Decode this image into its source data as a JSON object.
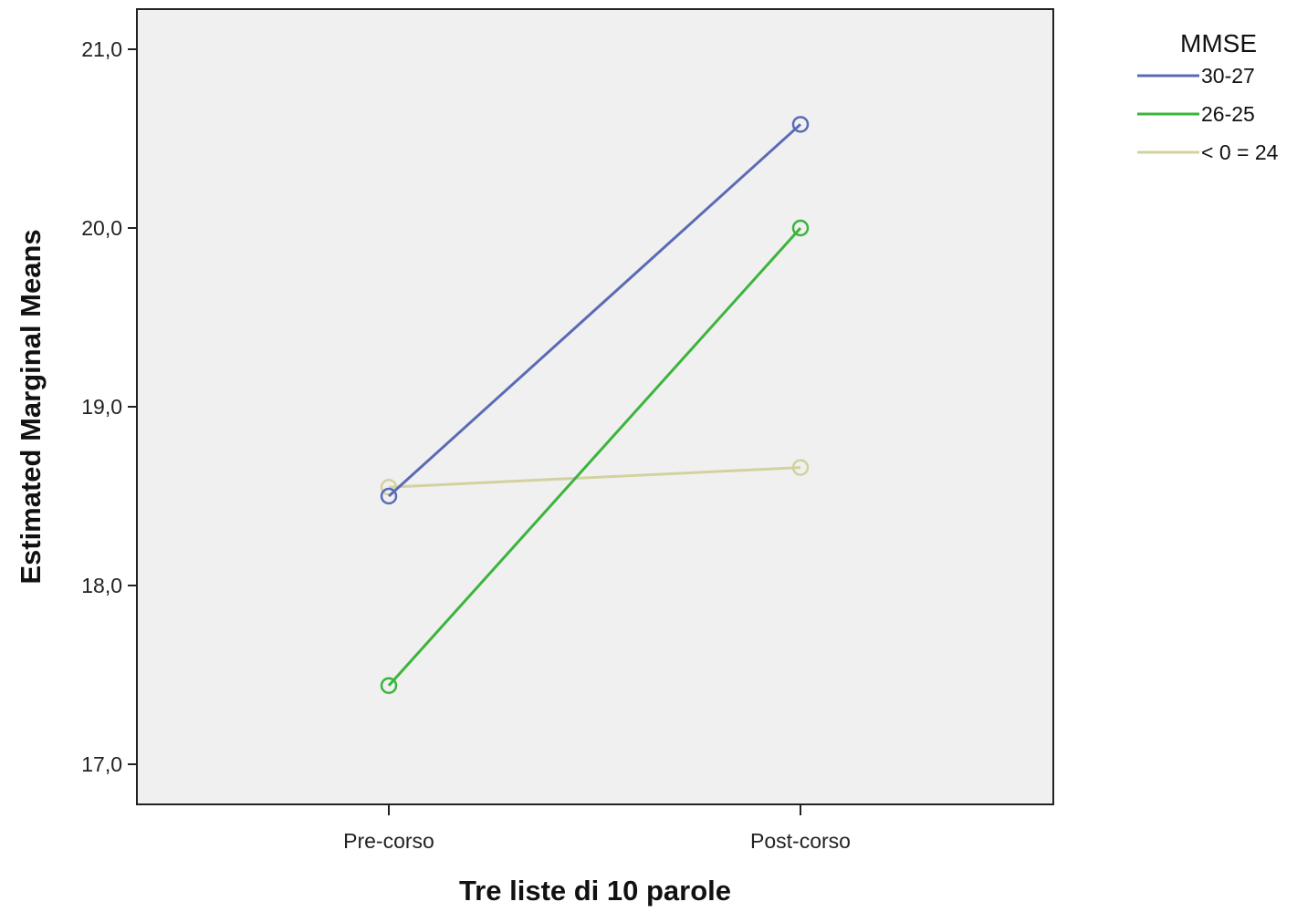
{
  "chart_data": {
    "type": "line",
    "title": "",
    "xlabel": "Tre liste di 10 parole",
    "ylabel": "Estimated Marginal Means",
    "categories": [
      "Pre-corso",
      "Post-corso"
    ],
    "ylim": [
      16.8,
      21.2
    ],
    "yticks": [
      17.0,
      18.0,
      19.0,
      20.0,
      21.0
    ],
    "ytick_labels": [
      "17,0",
      "18,0",
      "19,0",
      "20,0",
      "21,0"
    ],
    "grid": false,
    "plot_background": "#f0f0f0",
    "legend": {
      "title": "MMSE",
      "position": "top-right"
    },
    "series": [
      {
        "name": "30-27",
        "values": [
          18.5,
          20.58
        ],
        "color": "#5a6bb5"
      },
      {
        "name": "26-25",
        "values": [
          17.44,
          20.0
        ],
        "color": "#3cb43c"
      },
      {
        "name": "< 0 = 24",
        "values": [
          18.55,
          18.66
        ],
        "color": "#d2d2a0"
      }
    ]
  }
}
